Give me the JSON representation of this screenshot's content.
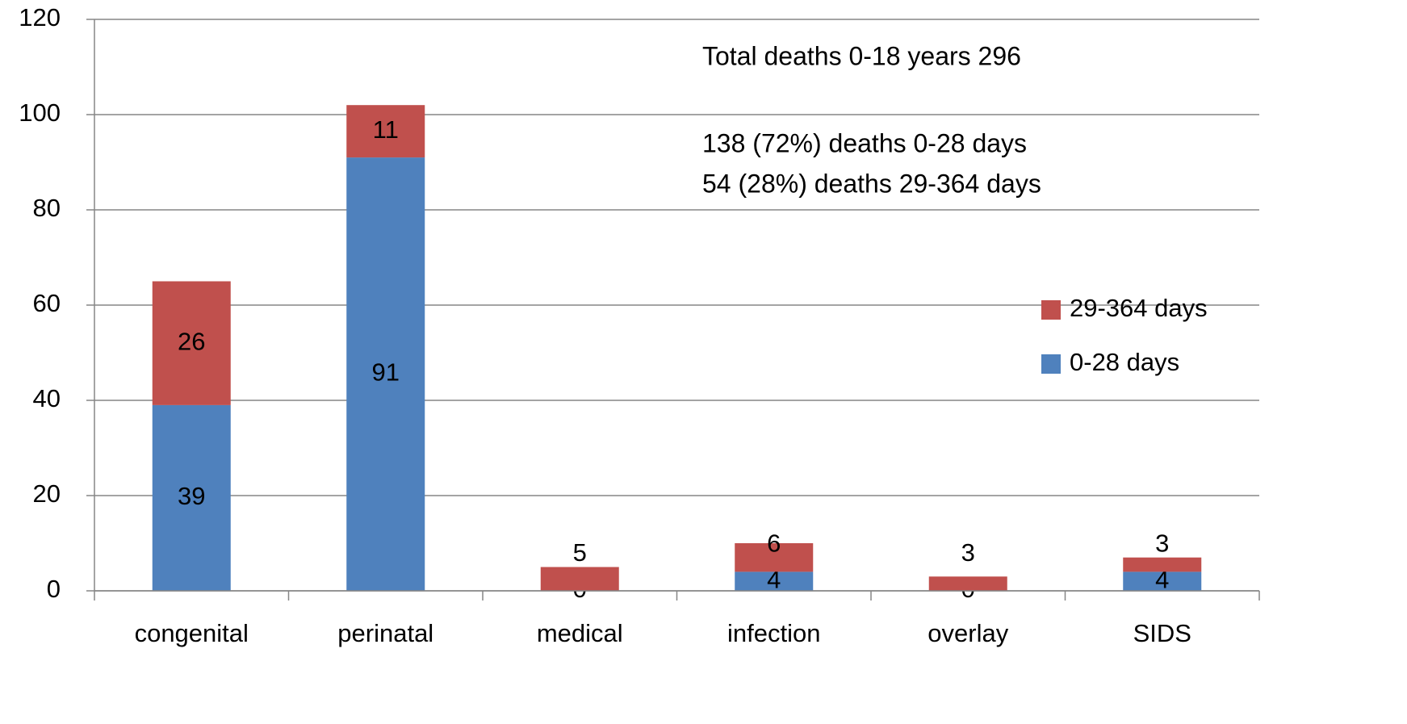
{
  "chart_data": {
    "type": "bar",
    "stacked": true,
    "categories": [
      "congenital",
      "perinatal",
      "medical",
      "infection",
      "overlay",
      "SIDS"
    ],
    "series": [
      {
        "name": "0-28 days",
        "color": "#4f81bd",
        "values": [
          39,
          91,
          0,
          4,
          0,
          4
        ]
      },
      {
        "name": "29-364 days",
        "color": "#c0504d",
        "values": [
          26,
          11,
          5,
          6,
          3,
          3
        ]
      }
    ],
    "annotations": [
      "Total deaths 0-18 years 296",
      "138 (72%) deaths 0-28 days",
      "54 (28%) deaths 29-364 days"
    ],
    "ylim": [
      0,
      120
    ],
    "yticks": [
      0,
      20,
      40,
      60,
      80,
      100,
      120
    ],
    "grid": true,
    "legend_position": "right"
  }
}
